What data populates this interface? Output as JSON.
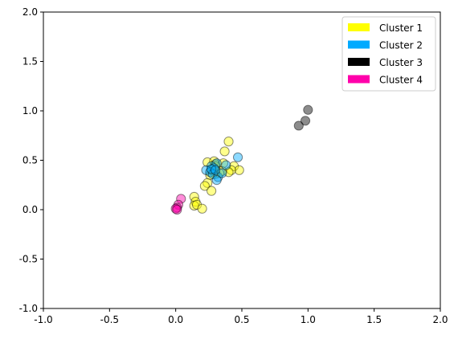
{
  "chart_data": {
    "type": "scatter",
    "title": "",
    "xlabel": "",
    "ylabel": "",
    "xlim": [
      -1.0,
      2.0
    ],
    "ylim": [
      -1.0,
      2.0
    ],
    "grid": false,
    "legend_position": "top-right",
    "x_ticks": [
      "-1.0",
      "-0.5",
      "0.0",
      "0.5",
      "1.0",
      "1.5",
      "2.0"
    ],
    "y_ticks": [
      "-1.0",
      "-0.5",
      "0.0",
      "0.5",
      "1.0",
      "1.5",
      "2.0"
    ],
    "series": [
      {
        "name": "Cluster 1",
        "color": "#ffff00",
        "points": [
          [
            0.4,
            0.69
          ],
          [
            0.37,
            0.59
          ],
          [
            0.24,
            0.48
          ],
          [
            0.29,
            0.49
          ],
          [
            0.3,
            0.46
          ],
          [
            0.36,
            0.47
          ],
          [
            0.44,
            0.44
          ],
          [
            0.48,
            0.4
          ],
          [
            0.42,
            0.4
          ],
          [
            0.4,
            0.38
          ],
          [
            0.35,
            0.39
          ],
          [
            0.33,
            0.37
          ],
          [
            0.3,
            0.36
          ],
          [
            0.26,
            0.35
          ],
          [
            0.24,
            0.27
          ],
          [
            0.22,
            0.24
          ],
          [
            0.27,
            0.19
          ],
          [
            0.14,
            0.13
          ],
          [
            0.15,
            0.08
          ],
          [
            0.14,
            0.04
          ],
          [
            0.16,
            0.05
          ],
          [
            0.2,
            0.01
          ],
          [
            0.3,
            0.44
          ],
          [
            0.27,
            0.4
          ]
        ]
      },
      {
        "name": "Cluster 2",
        "color": "#00aaff",
        "points": [
          [
            0.47,
            0.53
          ],
          [
            0.31,
            0.47
          ],
          [
            0.27,
            0.44
          ],
          [
            0.29,
            0.42
          ],
          [
            0.23,
            0.4
          ],
          [
            0.26,
            0.38
          ],
          [
            0.28,
            0.36
          ],
          [
            0.32,
            0.33
          ],
          [
            0.31,
            0.3
          ],
          [
            0.35,
            0.37
          ],
          [
            0.38,
            0.45
          ],
          [
            0.27,
            0.41
          ],
          [
            0.3,
            0.4
          ]
        ]
      },
      {
        "name": "Cluster 3",
        "color": "#000000",
        "points": [
          [
            1.0,
            1.01
          ],
          [
            0.98,
            0.9
          ],
          [
            0.93,
            0.85
          ]
        ]
      },
      {
        "name": "Cluster 4",
        "color": "#ff00aa",
        "points": [
          [
            0.04,
            0.11
          ],
          [
            0.02,
            0.05
          ],
          [
            0.01,
            0.02
          ],
          [
            0.0,
            0.01
          ],
          [
            0.01,
            0.0
          ]
        ]
      }
    ]
  }
}
